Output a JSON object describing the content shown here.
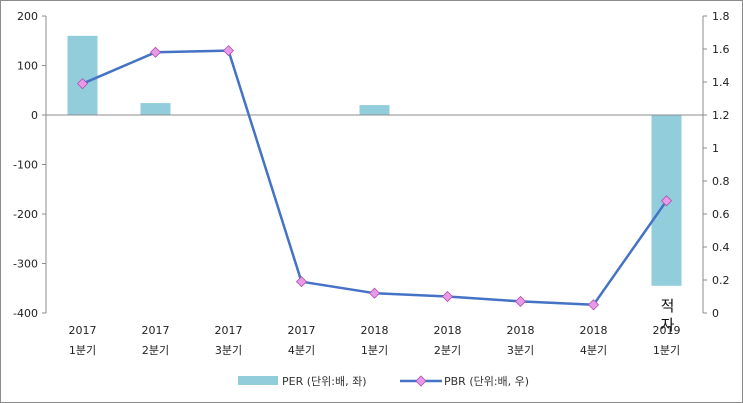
{
  "chart_data": {
    "type": "bar",
    "categories": [
      [
        "2017",
        "1분기"
      ],
      [
        "2017",
        "2분기"
      ],
      [
        "2017",
        "3분기"
      ],
      [
        "2017",
        "4분기"
      ],
      [
        "2018",
        "1분기"
      ],
      [
        "2018",
        "2분기"
      ],
      [
        "2018",
        "3분기"
      ],
      [
        "2018",
        "4분기"
      ],
      [
        "2019",
        "1분기"
      ]
    ],
    "series": [
      {
        "name": "PER (단위:배, 좌)",
        "kind": "bar",
        "axis": "left",
        "color": "#92cddc",
        "values": [
          160,
          24,
          null,
          null,
          20,
          null,
          null,
          null,
          -345
        ]
      },
      {
        "name": "PBR (단위:배, 우)",
        "kind": "line",
        "axis": "right",
        "color": "#4472c4",
        "marker_color": "#e899e8",
        "values": [
          1.39,
          1.58,
          1.59,
          0.19,
          0.12,
          0.1,
          0.07,
          0.05,
          0.68
        ]
      }
    ],
    "y_left": {
      "min": -400,
      "max": 200,
      "ticks": [
        200,
        100,
        0,
        -100,
        -200,
        -300,
        -400
      ]
    },
    "y_right": {
      "min": 0,
      "max": 1.8,
      "ticks": [
        "1.8",
        "1.6",
        "1.4",
        "1.2",
        "1",
        "0.8",
        "0.6",
        "0.4",
        "0.2",
        "0"
      ]
    },
    "annotation": {
      "text": "적자",
      "category_index": 8
    },
    "legend_position": "bottom",
    "grid": false
  }
}
